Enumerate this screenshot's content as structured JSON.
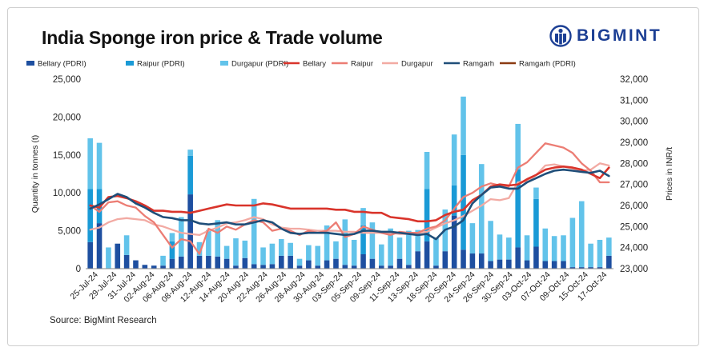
{
  "title": "India Sponge iron price & Trade volume",
  "brand": {
    "name": "BIGMINT",
    "logo_icon": "bigmint-logo-icon"
  },
  "source": "Source: BigMint Research",
  "colors": {
    "bellary_bar": "#1e4fa0",
    "raipur_bar": "#1a9ad6",
    "durgapur_bar": "#62c3ea",
    "bellary_line": "#d9342b",
    "raipur_line": "#ec7d74",
    "durgapur_line": "#f2aaa3",
    "ramgarh_line": "#1f4e79",
    "ramgarh_pdri": "#8b3a12",
    "brand": "#1c3f94"
  },
  "chart_data": {
    "type": "bar",
    "title": "India Sponge iron price & Trade volume",
    "ylabel": "Quantity in tonnes (t)",
    "y2label": "Prices in INR/t",
    "ylim": [
      0,
      25000
    ],
    "yticks": [
      "0",
      "5,000",
      "10,000",
      "15,000",
      "20,000",
      "25,000"
    ],
    "y2lim": [
      23000,
      32000
    ],
    "y2ticks": [
      "23,000",
      "24,000",
      "25,000",
      "26,000",
      "27,000",
      "28,000",
      "29,000",
      "30,000",
      "31,000",
      "32,000"
    ],
    "legend": [
      "Bellary (PDRI)",
      "Raipur (PDRI)",
      "Durgapur (PDRI)",
      "Bellary",
      "Raipur",
      "Durgapur",
      "Ramgarh",
      "Ramgarh (PDRI)"
    ],
    "legend_position": "top",
    "x_tick_labels": [
      "25-Jul-24",
      "29-Jul-24",
      "31-Jul-24",
      "02-Aug-24",
      "06-Aug-24",
      "08-Aug-24",
      "12-Aug-24",
      "14-Aug-24",
      "20-Aug-24",
      "22-Aug-24",
      "26-Aug-24",
      "28-Aug-24",
      "30-Aug-24",
      "03-Sep-24",
      "05-Sep-24",
      "09-Sep-24",
      "11-Sep-24",
      "13-Sep-24",
      "18-Sep-24",
      "20-Sep-24",
      "24-Sep-24",
      "26-Sep-24",
      "30-Sep-24",
      "03-Oct-24",
      "07-Oct-24",
      "09-Oct-24",
      "15-Oct-24",
      "17-Oct-24"
    ],
    "bar_series": [
      {
        "name": "Bellary (PDRI)",
        "values": [
          3500,
          6000,
          0,
          3300,
          1800,
          1100,
          500,
          400,
          400,
          1300,
          1600,
          9800,
          1700,
          1700,
          1600,
          1300,
          400,
          1400,
          600,
          500,
          600,
          1700,
          1700,
          400,
          1100,
          400,
          1100,
          1300,
          500,
          400,
          1900,
          1300,
          400,
          400,
          1300,
          500,
          2300,
          3600,
          400,
          2300,
          7000,
          2500,
          2000,
          2000,
          1000,
          1200,
          1200,
          2800,
          1100,
          2900,
          1000,
          1000,
          1000,
          200,
          200,
          200,
          200,
          1700
        ]
      },
      {
        "name": "Raipur (PDRI)",
        "values": [
          7000,
          4500,
          0,
          0,
          0,
          0,
          0,
          0,
          0,
          2300,
          0,
          5100,
          0,
          0,
          0,
          0,
          0,
          0,
          0,
          0,
          0,
          0,
          0,
          0,
          0,
          0,
          0,
          0,
          0,
          0,
          3800,
          0,
          0,
          0,
          0,
          0,
          0,
          6900,
          0,
          0,
          4000,
          12500,
          0,
          0,
          0,
          0,
          0,
          10300,
          0,
          6300,
          0,
          0,
          0,
          0,
          0,
          0,
          0,
          0
        ]
      },
      {
        "name": "Durgapur (PDRI)",
        "values": [
          6700,
          6100,
          2800,
          0,
          2600,
          0,
          0,
          0,
          1300,
          1100,
          5200,
          800,
          1800,
          3400,
          4800,
          1700,
          3600,
          2300,
          8600,
          2300,
          2700,
          2200,
          1700,
          900,
          2000,
          2600,
          4600,
          2300,
          6000,
          3400,
          2300,
          4800,
          2800,
          4900,
          2800,
          4500,
          2800,
          4900,
          3700,
          5500,
          6700,
          7700,
          4000,
          11800,
          5300,
          3300,
          2900,
          6000,
          3300,
          1500,
          4300,
          3300,
          3400,
          6500,
          8700,
          3100,
          3600,
          2400
        ]
      }
    ],
    "line_series": [
      {
        "name": "Bellary",
        "values": [
          26000,
          25900,
          26400,
          26450,
          26350,
          26200,
          26000,
          25750,
          25750,
          25700,
          25700,
          25650,
          25750,
          25850,
          25950,
          26050,
          26000,
          26000,
          26000,
          26100,
          26050,
          25950,
          25850,
          25850,
          25850,
          25850,
          25850,
          25800,
          25800,
          25700,
          25700,
          25650,
          25650,
          25450,
          25400,
          25350,
          25250,
          25250,
          25300,
          25550,
          25700,
          25800,
          26250,
          26500,
          26900,
          27000,
          26950,
          27000,
          27250,
          27450,
          27700,
          27800,
          27850,
          27800,
          27700,
          27500,
          27300,
          27800
        ]
      },
      {
        "name": "Raipur",
        "values": [
          26000,
          25700,
          26150,
          26200,
          26000,
          25900,
          25500,
          25200,
          24600,
          24000,
          24400,
          24300,
          23700,
          24900,
          24700,
          25000,
          24850,
          25100,
          25300,
          25200,
          24800,
          24900,
          24800,
          24600,
          24800,
          24700,
          24800,
          25200,
          24500,
          24650,
          25000,
          24850,
          24700,
          24600,
          24750,
          24700,
          24700,
          24900,
          25000,
          25300,
          25850,
          26400,
          26600,
          26900,
          27050,
          26950,
          26900,
          27800,
          28050,
          28500,
          28950,
          28850,
          28750,
          28500,
          28000,
          27650,
          27100,
          27100
        ]
      },
      {
        "name": "Durgapur",
        "values": [
          24850,
          24950,
          25200,
          25350,
          25400,
          25350,
          25300,
          25100,
          25000,
          24850,
          24700,
          24650,
          24600,
          24800,
          24950,
          25150,
          25200,
          25300,
          25450,
          25350,
          25100,
          24950,
          24900,
          24900,
          24850,
          24800,
          24800,
          24800,
          24750,
          24750,
          24700,
          24700,
          24700,
          24700,
          24650,
          24650,
          24700,
          24750,
          24950,
          25150,
          25300,
          25500,
          25750,
          26000,
          26300,
          26250,
          26350,
          27100,
          27150,
          27450,
          27900,
          27950,
          27850,
          27750,
          27650,
          27700,
          28000,
          27900
        ]
      },
      {
        "name": "Ramgarh",
        "values": [
          25850,
          26050,
          26300,
          26550,
          26400,
          26100,
          25900,
          25650,
          25450,
          25400,
          25300,
          25300,
          25150,
          25100,
          25150,
          25200,
          25100,
          25100,
          25200,
          25300,
          25200,
          24900,
          24700,
          24650,
          24700,
          24700,
          24700,
          24650,
          24600,
          24650,
          24800,
          24800,
          24750,
          24750,
          24700,
          24650,
          24600,
          24650,
          24400,
          24850,
          25000,
          25300,
          26100,
          26500,
          26850,
          26900,
          26800,
          26800,
          27100,
          27300,
          27500,
          27650,
          27700,
          27650,
          27600,
          27550,
          27650,
          27400
        ]
      },
      {
        "name": "Ramgarh (PDRI)",
        "values": []
      }
    ]
  }
}
